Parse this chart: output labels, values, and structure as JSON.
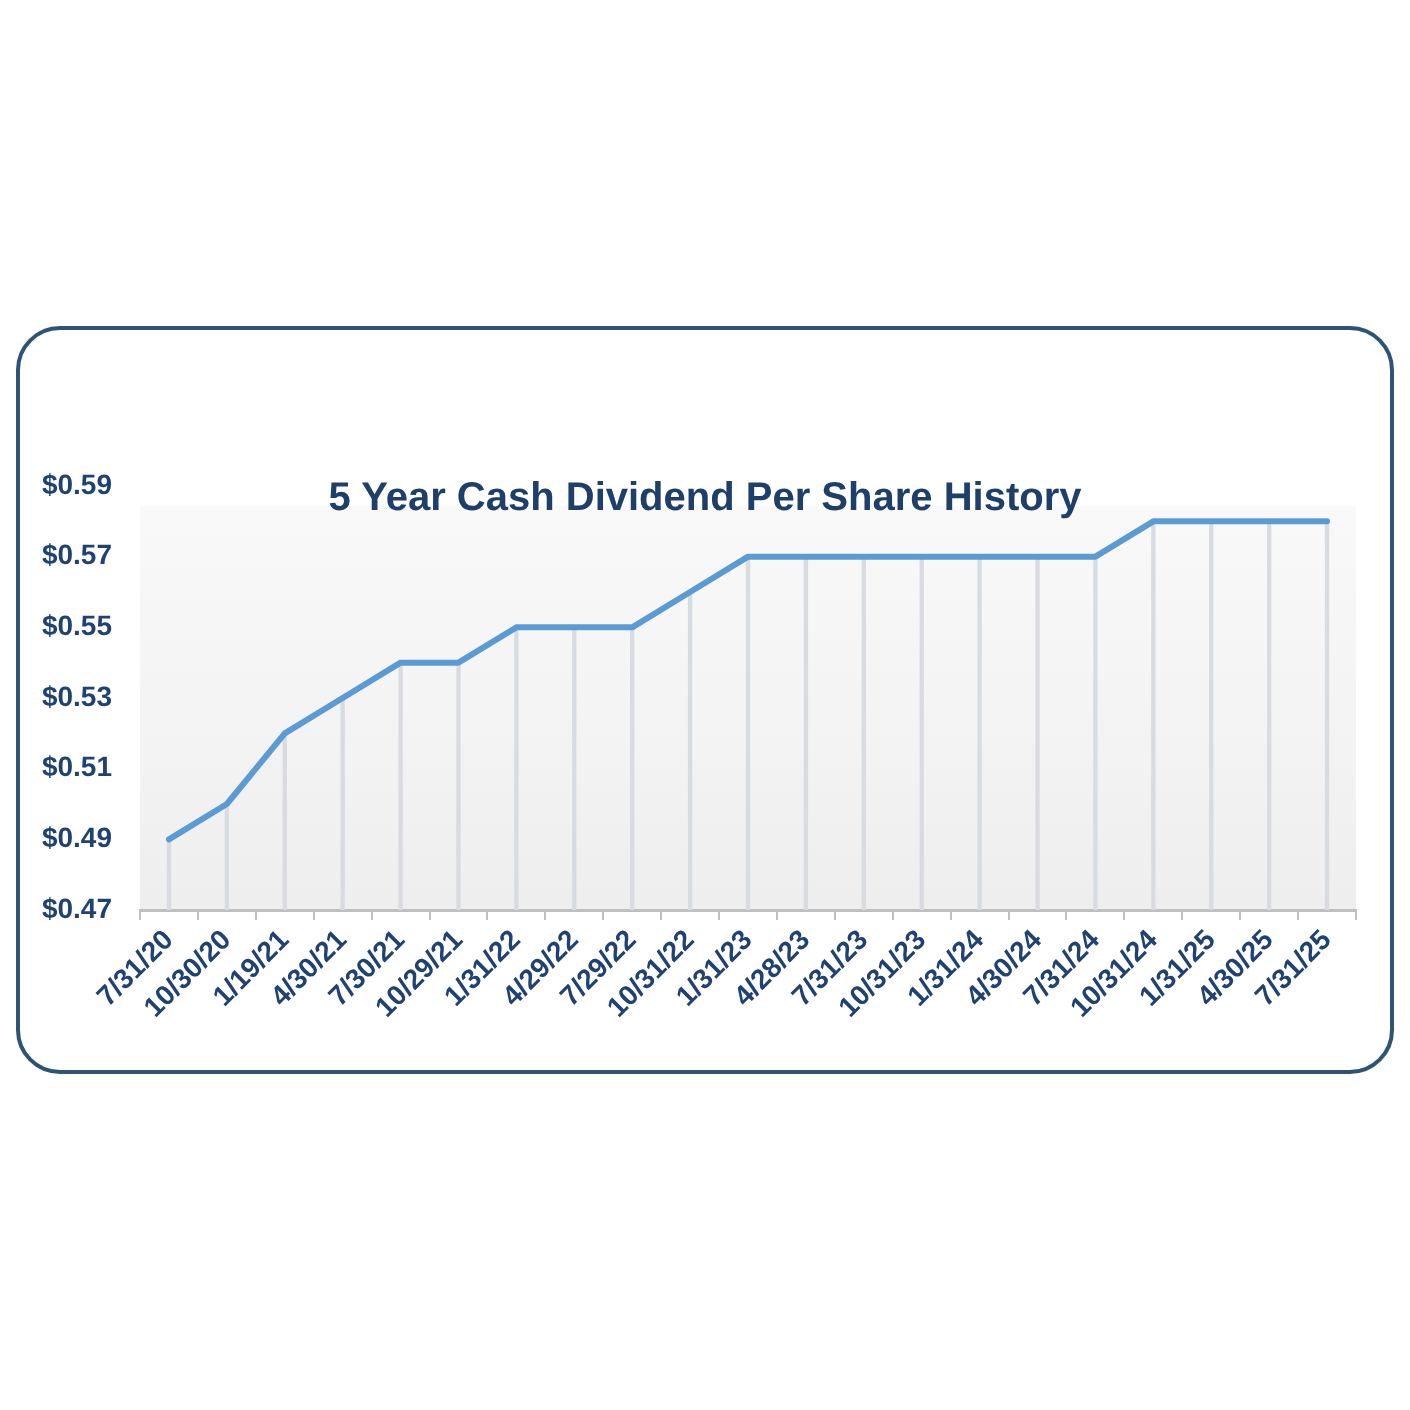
{
  "chart_data": {
    "type": "line",
    "title": "5 Year Cash Dividend Per Share History",
    "categories": [
      "7/31/20",
      "10/30/20",
      "1/19/21",
      "4/30/21",
      "7/30/21",
      "10/29/21",
      "1/31/22",
      "4/29/22",
      "7/29/22",
      "10/31/22",
      "1/31/23",
      "4/28/23",
      "7/31/23",
      "10/31/23",
      "1/31/24",
      "4/30/24",
      "7/31/24",
      "10/31/24",
      "1/31/25",
      "4/30/25",
      "7/31/25"
    ],
    "series": [
      {
        "type": "bar",
        "color": "#d8dbe0",
        "values": [
          0.49,
          0.5,
          0.52,
          0.53,
          0.54,
          0.54,
          0.55,
          0.55,
          0.55,
          0.56,
          0.57,
          0.57,
          0.57,
          0.57,
          0.57,
          0.57,
          0.57,
          0.58,
          0.58,
          0.58,
          0.58
        ]
      },
      {
        "color": "#5b9bd5",
        "values": [
          0.49,
          0.5,
          0.52,
          0.53,
          0.54,
          0.54,
          0.55,
          0.55,
          0.55,
          0.56,
          0.57,
          0.57,
          0.57,
          0.57,
          0.57,
          0.57,
          0.57,
          0.58,
          0.58,
          0.58,
          0.58
        ]
      }
    ],
    "ylim": [
      0.47,
      0.59
    ],
    "yticks": [
      {
        "value": 0.47,
        "label": "$0.47"
      },
      {
        "value": 0.49,
        "label": "$0.49"
      },
      {
        "value": 0.51,
        "label": "$0.51"
      },
      {
        "value": 0.53,
        "label": "$0.53"
      },
      {
        "value": 0.55,
        "label": "$0.55"
      },
      {
        "value": 0.57,
        "label": "$0.57"
      },
      {
        "value": 0.59,
        "label": "$0.59"
      }
    ],
    "marker": "none",
    "line_style": "solid"
  }
}
